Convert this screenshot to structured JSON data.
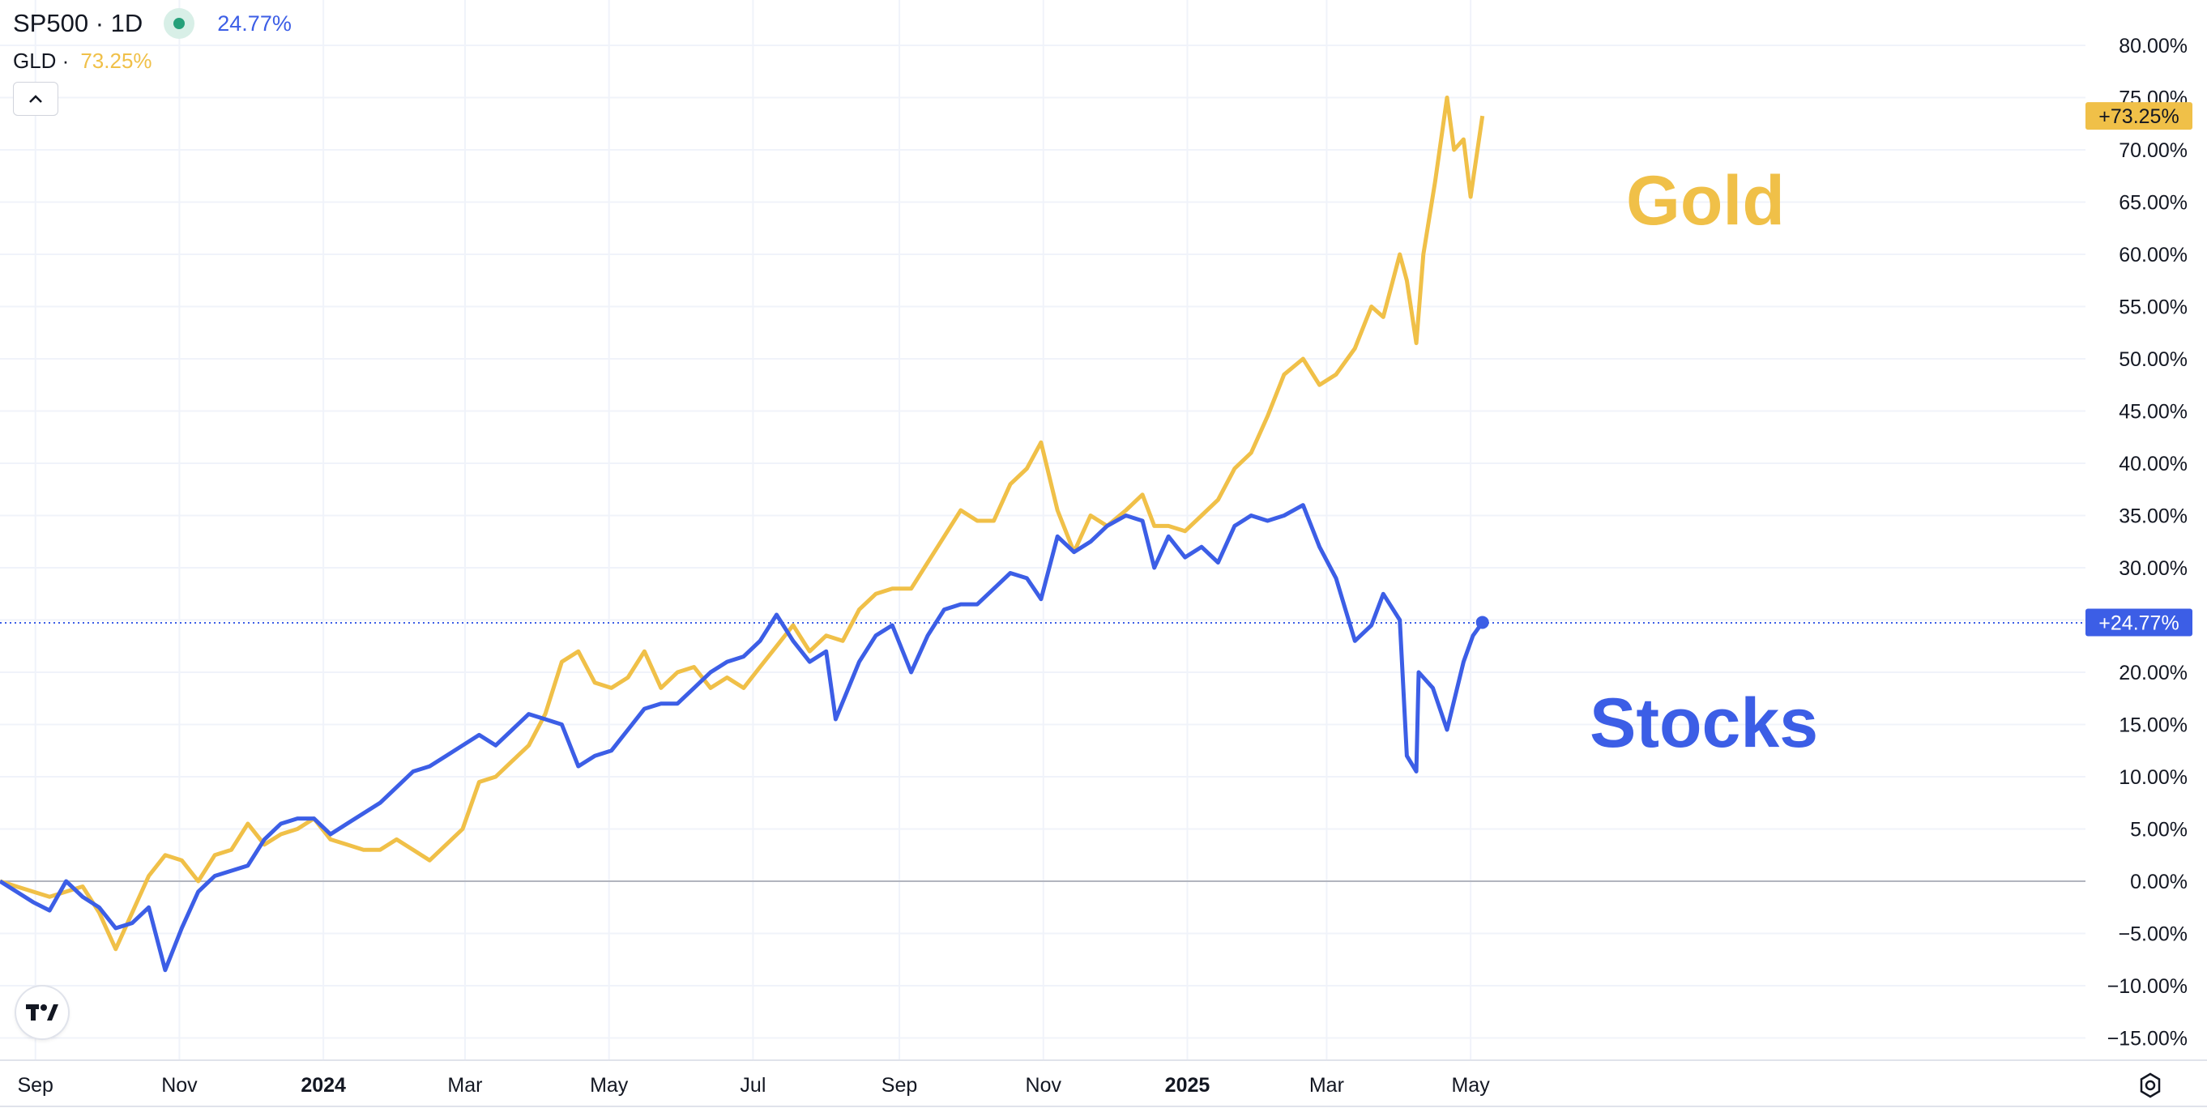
{
  "legend": {
    "symbol1": "SP500 · 1D",
    "symbol1_value": "24.77%",
    "symbol2": "GLD ·",
    "symbol2_value": "73.25%"
  },
  "icons": {
    "collapse": "chevron-up-icon",
    "logo": "tradingview-logo-icon",
    "settings": "settings-gear-icon",
    "status": "live-status-dot-icon"
  },
  "colors": {
    "stocks": "#3c5ee6",
    "gold": "#f0c048",
    "zero_line": "#b2b5be",
    "grid": "#f0f3fa"
  },
  "chart_data": {
    "type": "line",
    "title": "",
    "xlabel": "",
    "ylabel": "",
    "x_ticks": [
      "Sep",
      "Nov",
      "2024",
      "Mar",
      "May",
      "Jul",
      "Sep",
      "Nov",
      "2025",
      "Mar",
      "May"
    ],
    "x_ticks_bold": [
      "2024",
      "2025"
    ],
    "y_ticks": [
      "80.00%",
      "75.00%",
      "70.00%",
      "65.00%",
      "60.00%",
      "55.00%",
      "50.00%",
      "45.00%",
      "40.00%",
      "35.00%",
      "30.00%",
      "25.00%",
      "20.00%",
      "15.00%",
      "10.00%",
      "5.00%",
      "0.00%",
      "−5.00%",
      "−10.00%",
      "−15.00%"
    ],
    "ylim": [
      -16,
      81
    ],
    "grid": true,
    "annotations": [
      {
        "text": "Gold",
        "series": "GLD"
      },
      {
        "text": "Stocks",
        "series": "SP500"
      }
    ],
    "price_labels": [
      {
        "text": "+73.25%",
        "series": "GLD"
      },
      {
        "text": "+24.77%",
        "series": "SP500"
      }
    ],
    "series": [
      {
        "name": "SP500",
        "color": "#3c5ee6",
        "last_value": 24.77,
        "points": [
          [
            "2023-08-17",
            0
          ],
          [
            "2023-08-24",
            -1
          ],
          [
            "2023-08-31",
            -2
          ],
          [
            "2023-09-07",
            -2.8
          ],
          [
            "2023-09-14",
            0
          ],
          [
            "2023-09-21",
            -1.5
          ],
          [
            "2023-09-28",
            -2.5
          ],
          [
            "2023-10-05",
            -4.5
          ],
          [
            "2023-10-12",
            -4
          ],
          [
            "2023-10-19",
            -2.5
          ],
          [
            "2023-10-26",
            -8.5
          ],
          [
            "2023-11-02",
            -4.5
          ],
          [
            "2023-11-09",
            -1
          ],
          [
            "2023-11-16",
            0.5
          ],
          [
            "2023-11-23",
            1
          ],
          [
            "2023-11-30",
            1.5
          ],
          [
            "2023-12-07",
            4
          ],
          [
            "2023-12-14",
            5.5
          ],
          [
            "2023-12-21",
            6
          ],
          [
            "2023-12-28",
            6
          ],
          [
            "2024-01-04",
            4.5
          ],
          [
            "2024-01-11",
            5.5
          ],
          [
            "2024-01-18",
            6.5
          ],
          [
            "2024-01-25",
            7.5
          ],
          [
            "2024-02-01",
            9
          ],
          [
            "2024-02-08",
            10.5
          ],
          [
            "2024-02-15",
            11
          ],
          [
            "2024-02-22",
            12
          ],
          [
            "2024-02-29",
            13
          ],
          [
            "2024-03-07",
            14
          ],
          [
            "2024-03-14",
            13
          ],
          [
            "2024-03-21",
            14.5
          ],
          [
            "2024-03-28",
            16
          ],
          [
            "2024-04-04",
            15.5
          ],
          [
            "2024-04-11",
            15
          ],
          [
            "2024-04-18",
            11
          ],
          [
            "2024-04-25",
            12
          ],
          [
            "2024-05-02",
            12.5
          ],
          [
            "2024-05-09",
            14.5
          ],
          [
            "2024-05-16",
            16.5
          ],
          [
            "2024-05-23",
            17
          ],
          [
            "2024-05-30",
            17
          ],
          [
            "2024-06-06",
            18.5
          ],
          [
            "2024-06-13",
            20
          ],
          [
            "2024-06-20",
            21
          ],
          [
            "2024-06-27",
            21.5
          ],
          [
            "2024-07-04",
            23
          ],
          [
            "2024-07-11",
            25.5
          ],
          [
            "2024-07-18",
            23
          ],
          [
            "2024-07-25",
            21
          ],
          [
            "2024-08-01",
            22
          ],
          [
            "2024-08-05",
            15.5
          ],
          [
            "2024-08-15",
            21
          ],
          [
            "2024-08-22",
            23.5
          ],
          [
            "2024-08-29",
            24.5
          ],
          [
            "2024-09-06",
            20
          ],
          [
            "2024-09-13",
            23.5
          ],
          [
            "2024-09-20",
            26
          ],
          [
            "2024-09-27",
            26.5
          ],
          [
            "2024-10-04",
            26.5
          ],
          [
            "2024-10-11",
            28
          ],
          [
            "2024-10-18",
            29.5
          ],
          [
            "2024-10-25",
            29
          ],
          [
            "2024-10-31",
            27
          ],
          [
            "2024-11-07",
            33
          ],
          [
            "2024-11-14",
            31.5
          ],
          [
            "2024-11-21",
            32.5
          ],
          [
            "2024-11-28",
            34
          ],
          [
            "2024-12-06",
            35
          ],
          [
            "2024-12-13",
            34.5
          ],
          [
            "2024-12-18",
            30
          ],
          [
            "2024-12-24",
            33
          ],
          [
            "2024-12-31",
            31
          ],
          [
            "2025-01-07",
            32
          ],
          [
            "2025-01-14",
            30.5
          ],
          [
            "2025-01-21",
            34
          ],
          [
            "2025-01-28",
            35
          ],
          [
            "2025-02-04",
            34.5
          ],
          [
            "2025-02-11",
            35
          ],
          [
            "2025-02-19",
            36
          ],
          [
            "2025-02-26",
            32
          ],
          [
            "2025-03-05",
            29
          ],
          [
            "2025-03-13",
            23
          ],
          [
            "2025-03-20",
            24.5
          ],
          [
            "2025-03-25",
            27.5
          ],
          [
            "2025-04-01",
            25
          ],
          [
            "2025-04-04",
            12
          ],
          [
            "2025-04-08",
            10.5
          ],
          [
            "2025-04-09",
            20
          ],
          [
            "2025-04-15",
            18.5
          ],
          [
            "2025-04-21",
            14.5
          ],
          [
            "2025-04-28",
            21
          ],
          [
            "2025-05-02",
            23.5
          ],
          [
            "2025-05-06",
            24.77
          ]
        ]
      },
      {
        "name": "GLD",
        "color": "#f0c048",
        "last_value": 73.25,
        "points": [
          [
            "2023-08-17",
            0
          ],
          [
            "2023-08-24",
            -0.5
          ],
          [
            "2023-08-31",
            -1
          ],
          [
            "2023-09-07",
            -1.5
          ],
          [
            "2023-09-14",
            -1
          ],
          [
            "2023-09-21",
            -0.5
          ],
          [
            "2023-09-28",
            -3
          ],
          [
            "2023-10-05",
            -6.5
          ],
          [
            "2023-10-12",
            -3
          ],
          [
            "2023-10-19",
            0.5
          ],
          [
            "2023-10-26",
            2.5
          ],
          [
            "2023-11-02",
            2
          ],
          [
            "2023-11-09",
            0
          ],
          [
            "2023-11-16",
            2.5
          ],
          [
            "2023-11-23",
            3
          ],
          [
            "2023-11-30",
            5.5
          ],
          [
            "2023-12-07",
            3.5
          ],
          [
            "2023-12-14",
            4.5
          ],
          [
            "2023-12-21",
            5
          ],
          [
            "2023-12-28",
            6
          ],
          [
            "2024-01-04",
            4
          ],
          [
            "2024-01-11",
            3.5
          ],
          [
            "2024-01-18",
            3
          ],
          [
            "2024-01-25",
            3
          ],
          [
            "2024-02-01",
            4
          ],
          [
            "2024-02-08",
            3
          ],
          [
            "2024-02-15",
            2
          ],
          [
            "2024-02-22",
            3.5
          ],
          [
            "2024-02-29",
            5
          ],
          [
            "2024-03-07",
            9.5
          ],
          [
            "2024-03-14",
            10
          ],
          [
            "2024-03-21",
            11.5
          ],
          [
            "2024-03-28",
            13
          ],
          [
            "2024-04-04",
            16
          ],
          [
            "2024-04-11",
            21
          ],
          [
            "2024-04-18",
            22
          ],
          [
            "2024-04-25",
            19
          ],
          [
            "2024-05-02",
            18.5
          ],
          [
            "2024-05-09",
            19.5
          ],
          [
            "2024-05-16",
            22
          ],
          [
            "2024-05-23",
            18.5
          ],
          [
            "2024-05-30",
            20
          ],
          [
            "2024-06-06",
            20.5
          ],
          [
            "2024-06-13",
            18.5
          ],
          [
            "2024-06-20",
            19.5
          ],
          [
            "2024-06-27",
            18.5
          ],
          [
            "2024-07-04",
            20.5
          ],
          [
            "2024-07-11",
            22.5
          ],
          [
            "2024-07-18",
            24.5
          ],
          [
            "2024-07-25",
            22
          ],
          [
            "2024-08-01",
            23.5
          ],
          [
            "2024-08-08",
            23
          ],
          [
            "2024-08-15",
            26
          ],
          [
            "2024-08-22",
            27.5
          ],
          [
            "2024-08-29",
            28
          ],
          [
            "2024-09-06",
            28
          ],
          [
            "2024-09-13",
            30.5
          ],
          [
            "2024-09-20",
            33
          ],
          [
            "2024-09-27",
            35.5
          ],
          [
            "2024-10-04",
            34.5
          ],
          [
            "2024-10-11",
            34.5
          ],
          [
            "2024-10-18",
            38
          ],
          [
            "2024-10-25",
            39.5
          ],
          [
            "2024-10-31",
            42
          ],
          [
            "2024-11-07",
            35.5
          ],
          [
            "2024-11-14",
            31.5
          ],
          [
            "2024-11-21",
            35
          ],
          [
            "2024-11-28",
            34
          ],
          [
            "2024-12-06",
            35.5
          ],
          [
            "2024-12-13",
            37
          ],
          [
            "2024-12-18",
            34
          ],
          [
            "2024-12-24",
            34
          ],
          [
            "2024-12-31",
            33.5
          ],
          [
            "2025-01-07",
            35
          ],
          [
            "2025-01-14",
            36.5
          ],
          [
            "2025-01-21",
            39.5
          ],
          [
            "2025-01-28",
            41
          ],
          [
            "2025-02-04",
            44.5
          ],
          [
            "2025-02-11",
            48.5
          ],
          [
            "2025-02-19",
            50
          ],
          [
            "2025-02-26",
            47.5
          ],
          [
            "2025-03-05",
            48.5
          ],
          [
            "2025-03-13",
            51
          ],
          [
            "2025-03-20",
            55
          ],
          [
            "2025-03-25",
            54
          ],
          [
            "2025-04-01",
            60
          ],
          [
            "2025-04-04",
            57.5
          ],
          [
            "2025-04-08",
            51.5
          ],
          [
            "2025-04-11",
            60
          ],
          [
            "2025-04-16",
            67
          ],
          [
            "2025-04-21",
            75
          ],
          [
            "2025-04-24",
            70
          ],
          [
            "2025-04-28",
            71
          ],
          [
            "2025-05-01",
            65.5
          ],
          [
            "2025-05-06",
            73.25
          ]
        ]
      }
    ]
  }
}
